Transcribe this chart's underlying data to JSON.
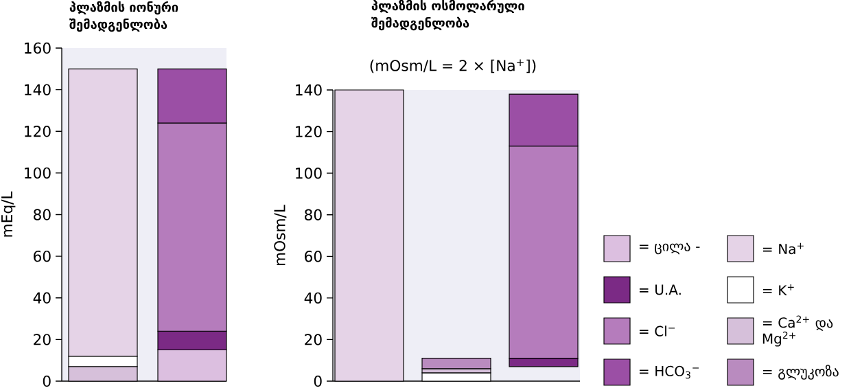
{
  "chart_data": [
    {
      "type": "bar",
      "title": "პლაზმის იონური შემადგენლობა",
      "ylabel": "mEq/L",
      "categories": [
        null,
        null
      ],
      "stacked": true,
      "ylim": [
        0,
        160
      ],
      "yticks": [
        0,
        20,
        40,
        60,
        80,
        100,
        120,
        140,
        160
      ],
      "tick_labels": "y",
      "series": [
        {
          "color": "#d6c0da",
          "values": [
            7,
            null
          ]
        },
        {
          "color": "#ffffff",
          "values": [
            5,
            null
          ]
        },
        {
          "color": "#e5d3e7",
          "values": [
            138,
            null
          ]
        },
        {
          "color": "#dcbfe0",
          "values": [
            null,
            15
          ]
        },
        {
          "color": "#7b2a85",
          "values": [
            null,
            9
          ]
        },
        {
          "color": "#b57cbc",
          "values": [
            null,
            100
          ]
        },
        {
          "color": "#9b4fa5",
          "values": [
            null,
            26
          ]
        }
      ]
    },
    {
      "type": "bar",
      "title": "პლაზმის ოსმოლარული შემადგენლობა",
      "subtitle": "(mOsm/L = 2 × [Na$^{+}$])",
      "ylabel": "mOsm/L",
      "categories": [
        null,
        null,
        null
      ],
      "stacked": true,
      "ylim": [
        0,
        140
      ],
      "yticks": [
        0,
        20,
        40,
        60,
        80,
        100,
        120,
        140
      ],
      "tick_labels": "y",
      "legend": "right",
      "series": [
        {
          "name": "= ცილა -",
          "color": "#dcbfe0",
          "values": [
            null,
            null,
            null
          ]
        },
        {
          "name": "= U.A.",
          "color": "#7b2a85",
          "values": [
            null,
            null,
            4
          ],
          "base": [
            null,
            null,
            7
          ]
        },
        {
          "name": "= Cl$^{−}$",
          "color": "#b57cbc",
          "values": [
            null,
            null,
            102
          ]
        },
        {
          "name": "= HCO$_{3}$$^{−}$",
          "color": "#9b4fa5",
          "values": [
            null,
            null,
            25
          ]
        },
        {
          "name": "= Na$^{+}$",
          "color": "#e5d3e7",
          "values": [
            140,
            null,
            null
          ]
        },
        {
          "name": "= K$^{+}$",
          "color": "#ffffff",
          "values": [
            null,
            4,
            null
          ]
        },
        {
          "name": "= Ca$^{2+}$ და Mg$^{2+}$",
          "color": "#d6c0da",
          "values": [
            null,
            2,
            null
          ]
        },
        {
          "name": "= გლუკოზა",
          "color": "#b98bbf",
          "values": [
            null,
            5,
            null
          ]
        }
      ]
    }
  ]
}
